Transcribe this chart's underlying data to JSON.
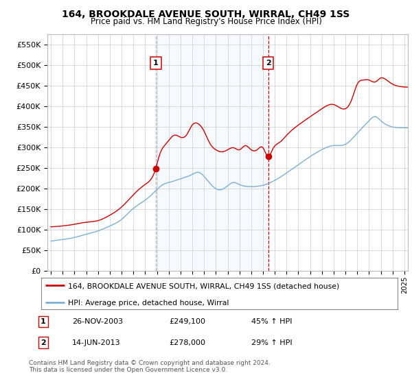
{
  "title": "164, BROOKDALE AVENUE SOUTH, WIRRAL, CH49 1SS",
  "subtitle": "Price paid vs. HM Land Registry's House Price Index (HPI)",
  "legend_line1": "164, BROOKDALE AVENUE SOUTH, WIRRAL, CH49 1SS (detached house)",
  "legend_line2": "HPI: Average price, detached house, Wirral",
  "annotation1_label": "1",
  "annotation1_date": "26-NOV-2003",
  "annotation1_price": "£249,100",
  "annotation1_hpi": "45% ↑ HPI",
  "annotation2_label": "2",
  "annotation2_date": "14-JUN-2013",
  "annotation2_price": "£278,000",
  "annotation2_hpi": "29% ↑ HPI",
  "footnote1": "Contains HM Land Registry data © Crown copyright and database right 2024.",
  "footnote2": "This data is licensed under the Open Government Licence v3.0.",
  "sale_color": "#cc0000",
  "hpi_color": "#7bafd4",
  "vline1_color": "#aaaaaa",
  "vline2_color": "#cc0000",
  "shade_color": "#ddeeff",
  "background_color": "#ffffff",
  "grid_color": "#cccccc",
  "ylim": [
    0,
    575000
  ],
  "yticks": [
    0,
    50000,
    100000,
    150000,
    200000,
    250000,
    300000,
    350000,
    400000,
    450000,
    500000,
    550000
  ],
  "ytick_labels": [
    "£0",
    "£50K",
    "£100K",
    "£150K",
    "£200K",
    "£250K",
    "£300K",
    "£350K",
    "£400K",
    "£450K",
    "£500K",
    "£550K"
  ],
  "sale1_x": 2003.9,
  "sale1_y": 249100,
  "sale2_x": 2013.45,
  "sale2_y": 278000,
  "xlim_left": 1994.7,
  "xlim_right": 2025.3
}
